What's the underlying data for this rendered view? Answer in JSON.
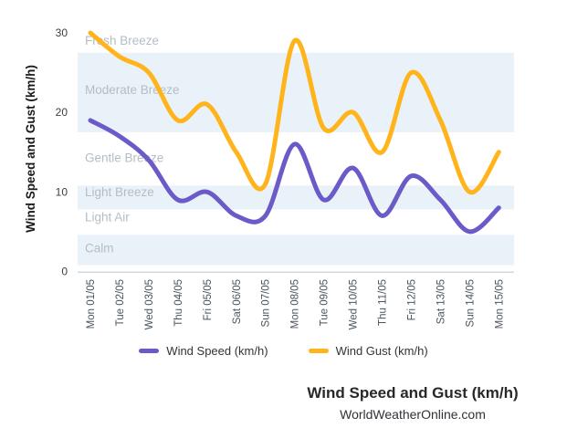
{
  "chart_data": {
    "type": "line",
    "title": "Wind Speed and Gust (km/h)",
    "subtitle": "WorldWeatherOnline.com",
    "ylabel": "Wind Speed and Gust (km/h)",
    "ylim": [
      0,
      30
    ],
    "yticks": [
      0,
      10,
      20,
      30
    ],
    "grid": false,
    "legend_position": "bottom",
    "categories": [
      "Mon 01/05",
      "Tue 02/05",
      "Wed 03/05",
      "Thu 04/05",
      "Fri 05/05",
      "Sat 06/05",
      "Sun 07/05",
      "Mon 08/05",
      "Tue 09/05",
      "Wed 10/05",
      "Thu 11/05",
      "Fri 12/05",
      "Sat 13/05",
      "Sun 14/05",
      "Mon 15/05"
    ],
    "series": [
      {
        "name": "Wind Speed (km/h)",
        "color": "#6a5bc8",
        "values": [
          19,
          17,
          14,
          9,
          10,
          7,
          7,
          16,
          9,
          13,
          7,
          12,
          9,
          5,
          8
        ]
      },
      {
        "name": "Wind Gust (km/h)",
        "color": "#ffb41c",
        "values": [
          30,
          27,
          25,
          19,
          21,
          15,
          11,
          29,
          18,
          20,
          15,
          25,
          19,
          10,
          15
        ]
      }
    ],
    "bands": [
      {
        "label": "Fresh Breeze",
        "shaded": false,
        "label_value": 29.0
      },
      {
        "label": "Moderate Breeze",
        "shaded": true,
        "from": 17.5,
        "to": 27.5,
        "label_value": 22.8
      },
      {
        "label": "Gentle Breeze",
        "shaded": false,
        "label_value": 14.3
      },
      {
        "label": "Light Breeze",
        "shaded": true,
        "from": 7.8,
        "to": 10.8,
        "label_value": 10.0
      },
      {
        "label": "Light Air",
        "shaded": false,
        "label_value": 6.8
      },
      {
        "label": "Calm",
        "shaded": true,
        "from": 0.8,
        "to": 4.6,
        "label_value": 2.9
      }
    ],
    "colors": {
      "band_fill": "#e9f2f9",
      "band_label": "#b5bdc4",
      "y_tick_label": "#3d3d3d",
      "x_label": "#4a545e",
      "axis_line": "#d0d9e0",
      "ylabel_color": "#1a1a1a"
    }
  }
}
